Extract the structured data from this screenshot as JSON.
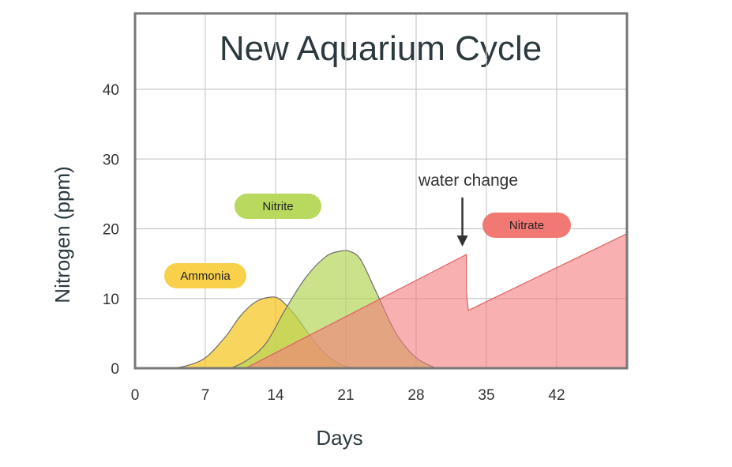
{
  "chart_data": {
    "type": "area",
    "title": "New Aquarium Cycle",
    "xlabel": "Days",
    "ylabel": "Nitrogen (ppm)",
    "xlim": [
      0,
      49
    ],
    "ylim": [
      0,
      40
    ],
    "x_ticks": [
      0,
      7,
      14,
      21,
      28,
      35,
      42
    ],
    "y_ticks": [
      0,
      10,
      20,
      30,
      40
    ],
    "grid": true,
    "series": [
      {
        "name": "Ammonia",
        "color": "#f5c518",
        "x": [
          3.5,
          5,
          7,
          9,
          10.5,
          12,
          13.5,
          14.5,
          16,
          17.5,
          19,
          20.5,
          22
        ],
        "y": [
          0,
          0.3,
          1.5,
          4.5,
          7.5,
          9.5,
          10.2,
          9.8,
          7.5,
          4.5,
          2,
          0.5,
          0
        ]
      },
      {
        "name": "Nitrite",
        "color": "#b5d55a",
        "x": [
          9.5,
          11,
          13,
          15,
          17,
          19,
          20.5,
          21.5,
          22.5,
          24,
          26,
          28,
          30
        ],
        "y": [
          0,
          1,
          3.5,
          8.5,
          13,
          16,
          16.8,
          16.7,
          15.5,
          11,
          5,
          1.5,
          0
        ]
      },
      {
        "name": "Nitrate",
        "color": "#f47c7c",
        "x": [
          11,
          33,
          33,
          33.2,
          49
        ],
        "y": [
          0,
          16.3,
          11,
          8.3,
          19.3
        ]
      }
    ],
    "annotations": [
      {
        "text": "water change",
        "x": 33,
        "y": 16.3
      }
    ],
    "labels": {
      "ammonia": "Ammonia",
      "nitrite": "Nitrite",
      "nitrate": "Nitrate"
    }
  }
}
